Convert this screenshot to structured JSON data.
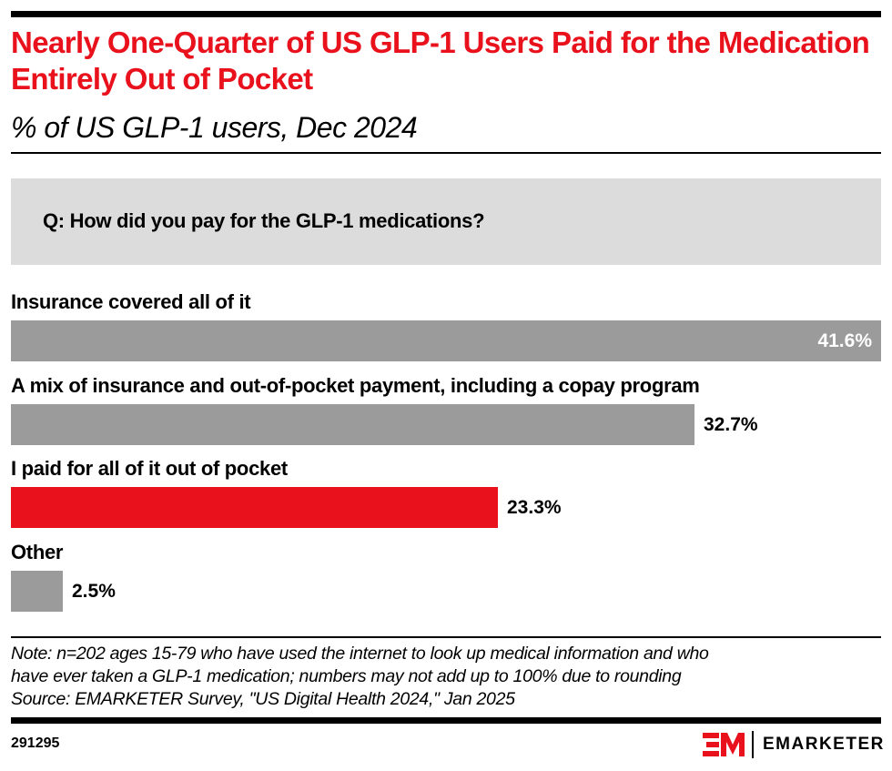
{
  "header": {
    "title": "Nearly One-Quarter of US GLP-1 Users Paid for the Medication Entirely Out of Pocket",
    "subtitle": "% of US GLP-1 users, Dec 2024"
  },
  "question": "Q: How did you pay for the GLP-1 medications?",
  "colors": {
    "accent": "#e8111c",
    "bar_default": "#9b9b9b",
    "bar_highlight": "#e8111c",
    "question_bg": "#dcdcdc"
  },
  "chart_data": {
    "type": "bar",
    "orientation": "horizontal",
    "title": "Nearly One-Quarter of US GLP-1 Users Paid for the Medication Entirely Out of Pocket",
    "subtitle": "% of US GLP-1 users, Dec 2024",
    "xlabel": "",
    "ylabel": "",
    "unit": "%",
    "categories": [
      "Insurance covered all of it",
      "A mix of insurance and out-of-pocket payment, including a copay program",
      "I paid for all of it out of pocket",
      "Other"
    ],
    "values": [
      41.6,
      32.7,
      23.3,
      2.5
    ],
    "value_labels": [
      "41.6%",
      "32.7%",
      "23.3%",
      "2.5%"
    ],
    "highlight_index": 2,
    "xlim": [
      0,
      41.6
    ],
    "grid": false,
    "legend": "none"
  },
  "footer": {
    "note_line1": "Note: n=202 ages 15-79 who have used the internet to look up medical information and who",
    "note_line2": "have ever taken a GLP-1 medication; numbers may not add up to 100% due to rounding",
    "source": "Source: EMARKETER Survey, \"US Digital Health 2024,\" Jan 2025",
    "chart_id": "291295",
    "brand": "EMARKETER"
  }
}
